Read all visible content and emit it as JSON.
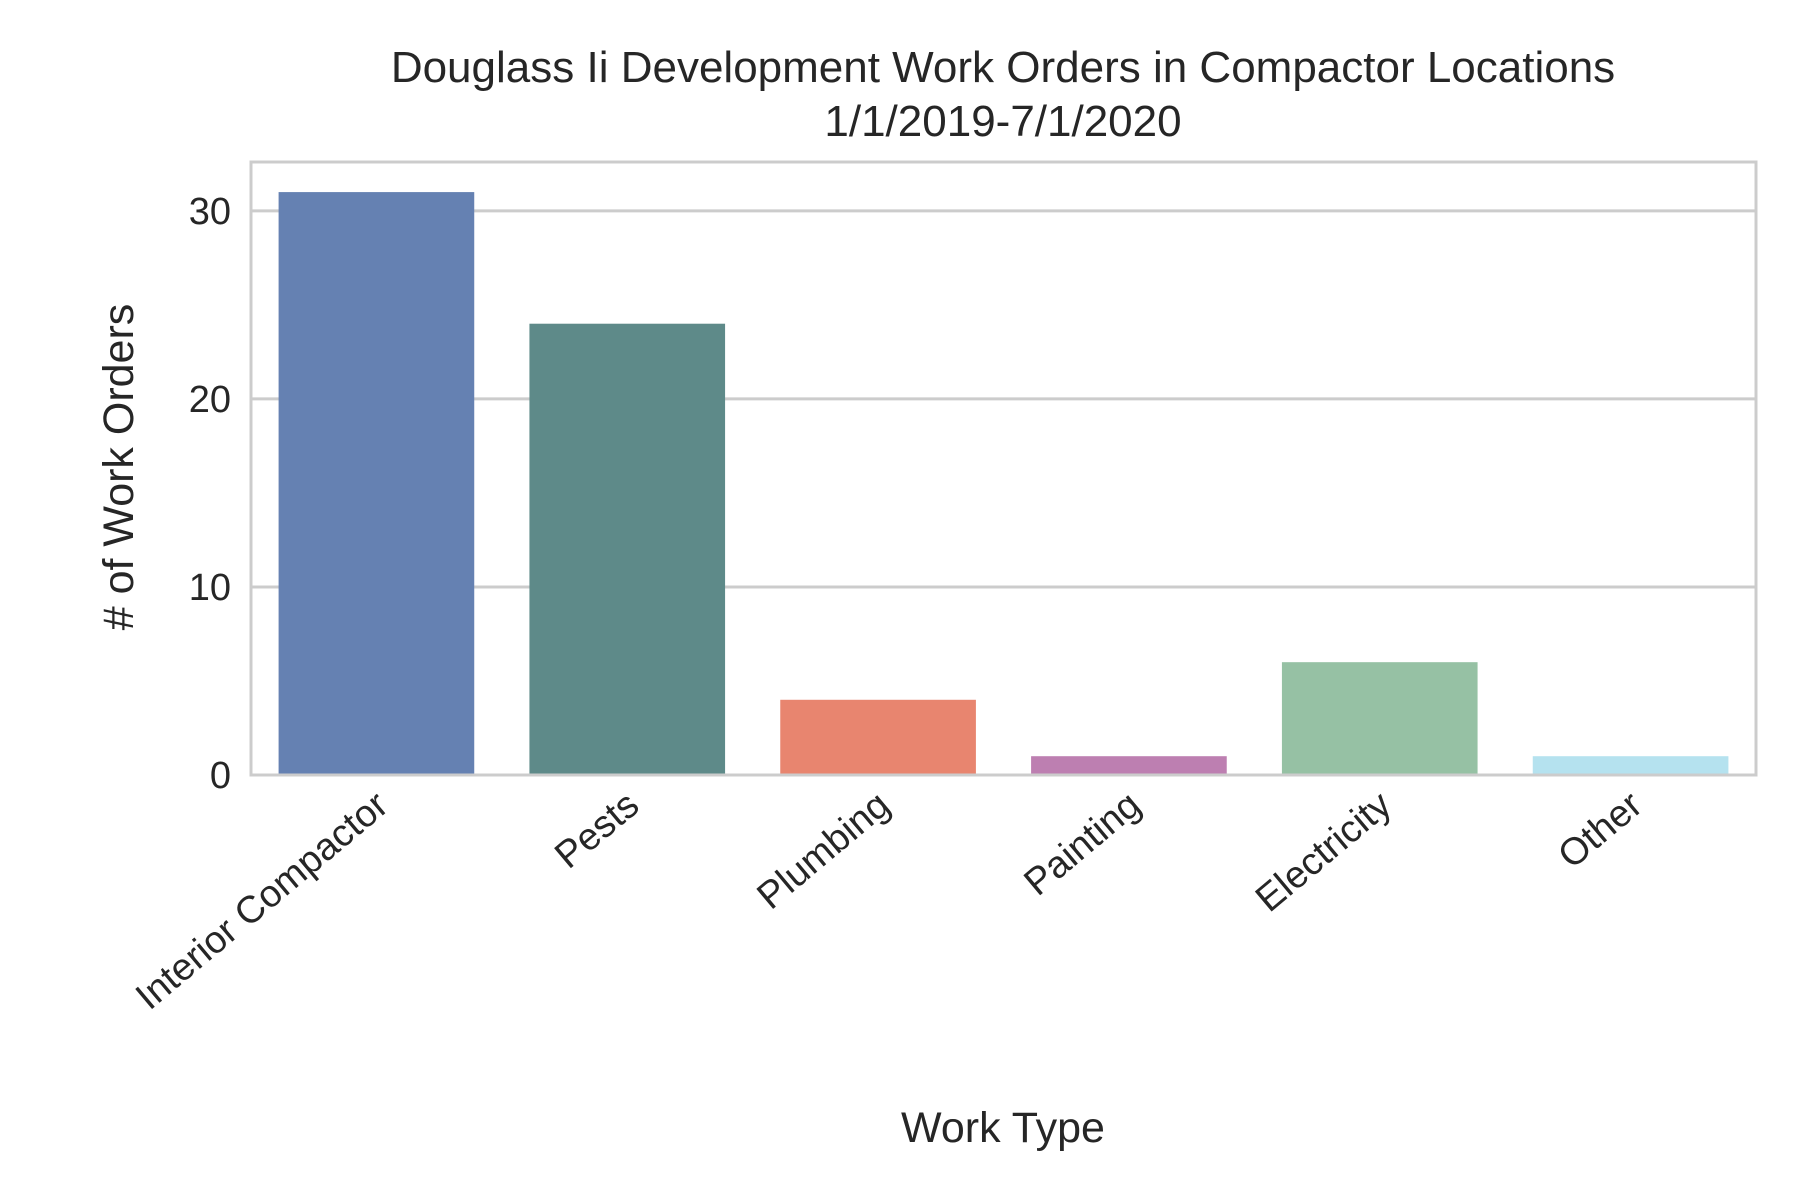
{
  "chart_data": {
    "type": "bar",
    "title": "Douglass Ii Development Work Orders in Compactor Locations",
    "subtitle": "1/1/2019-7/1/2020",
    "xlabel": "Work Type",
    "ylabel": "# of Work Orders",
    "categories": [
      "Interior Compactor",
      "Pests",
      "Plumbing",
      "Painting",
      "Electricity",
      "Other"
    ],
    "values": [
      31,
      24,
      4,
      1,
      6,
      1
    ],
    "colors": [
      "#6581b2",
      "#5e8a89",
      "#e8856f",
      "#bd7fb1",
      "#96c1a4",
      "#b5e2ef"
    ],
    "ylim": [
      0,
      32.6
    ],
    "yticks": [
      0,
      10,
      20,
      30
    ],
    "grid": true,
    "grid_axis": "y",
    "legend": "none"
  }
}
